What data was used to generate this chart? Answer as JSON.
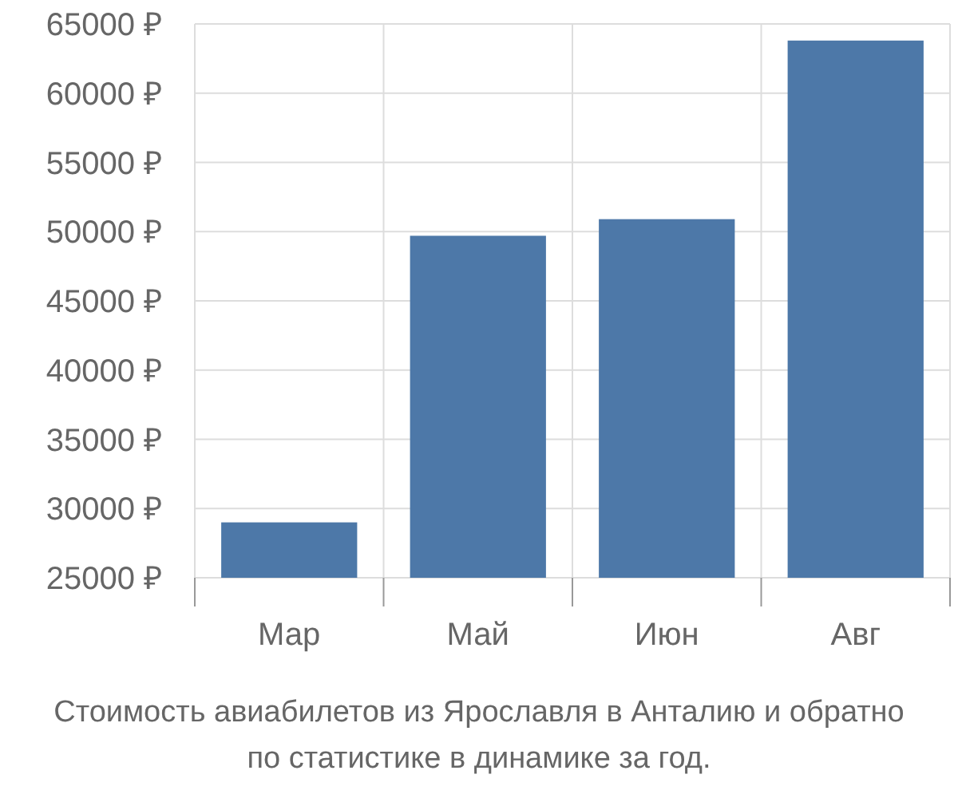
{
  "chart_data": {
    "type": "bar",
    "categories": [
      "Мар",
      "Май",
      "Июн",
      "Авг"
    ],
    "values": [
      29000,
      49700,
      50900,
      63800
    ],
    "color": "#4d78a8",
    "ylim": [
      25000,
      65000
    ],
    "yticks": [
      {
        "value": 25000,
        "label": "25000 ₽"
      },
      {
        "value": 30000,
        "label": "30000 ₽"
      },
      {
        "value": 35000,
        "label": "35000 ₽"
      },
      {
        "value": 40000,
        "label": "40000 ₽"
      },
      {
        "value": 45000,
        "label": "45000 ₽"
      },
      {
        "value": 50000,
        "label": "50000 ₽"
      },
      {
        "value": 55000,
        "label": "55000 ₽"
      },
      {
        "value": 60000,
        "label": "60000 ₽"
      },
      {
        "value": 65000,
        "label": "65000 ₽"
      }
    ],
    "grid": true,
    "annotations": [
      "Стоимость авиабилетов из Ярославля в Анталию и обратно",
      "по статистике в динамике за год."
    ]
  }
}
